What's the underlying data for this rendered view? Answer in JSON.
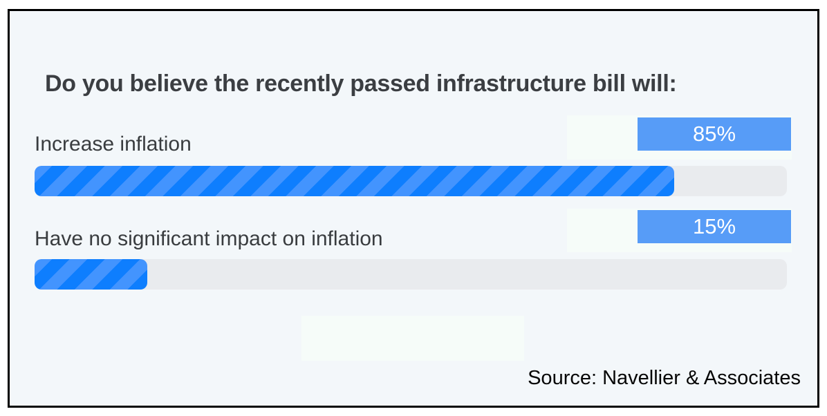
{
  "chart_data": {
    "type": "bar",
    "orientation": "horizontal",
    "title": "Do you believe the recently passed infrastructure bill will:",
    "categories": [
      "Increase inflation",
      "Have no significant impact on inflation"
    ],
    "values": [
      85,
      15
    ],
    "value_labels": [
      "85%",
      "15%"
    ],
    "xlim": [
      0,
      100
    ],
    "grid": false,
    "legend": false,
    "source": "Source: Navellier & Associates",
    "colors": {
      "background": "#f3f7fa",
      "frame_border": "#000000",
      "bar_stripe_dark": "#0e7efe",
      "bar_stripe_light": "#4394fe",
      "bar_track": "#e9ebee",
      "value_badge": "#579cf7",
      "value_badge_text": "#ffffff",
      "title_text": "#3b3e42",
      "label_text": "#393c3f",
      "source_text": "#060606",
      "highlight_block": "#f6fcf9"
    }
  }
}
